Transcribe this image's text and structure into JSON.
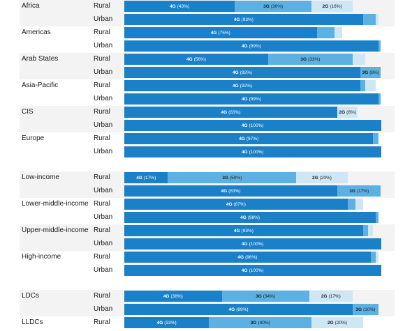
{
  "colors": {
    "4G": "#1a80c8",
    "3G": "#5cb1e2",
    "2G": "#cfe6f5",
    "band": "#f3f3f3",
    "text": "#1a1a1a"
  },
  "chart_data": {
    "type": "bar",
    "orientation": "horizontal",
    "stacked": true,
    "xlim": [
      0,
      100
    ],
    "unit": "%",
    "groups": [
      {
        "label": "Africa",
        "rows": [
          {
            "setting": "Rural",
            "segments": [
              {
                "tech": "4G",
                "value": 43,
                "label": "(43%)"
              },
              {
                "tech": "3G",
                "value": 30,
                "label": "(30%)"
              },
              {
                "tech": "2G",
                "value": 16,
                "label": "(16%)"
              }
            ]
          },
          {
            "setting": "Urban",
            "segments": [
              {
                "tech": "4G",
                "value": 93,
                "label": "(93%)"
              },
              {
                "tech": "3G",
                "value": 5,
                "label": ""
              },
              {
                "tech": "2G",
                "value": 1,
                "label": ""
              }
            ]
          }
        ]
      },
      {
        "label": "Americas",
        "rows": [
          {
            "setting": "Rural",
            "segments": [
              {
                "tech": "4G",
                "value": 75,
                "label": "(75%)"
              },
              {
                "tech": "3G",
                "value": 7,
                "label": ""
              },
              {
                "tech": "2G",
                "value": 3,
                "label": ""
              }
            ]
          },
          {
            "setting": "Urban",
            "segments": [
              {
                "tech": "4G",
                "value": 99,
                "label": "(99%)"
              },
              {
                "tech": "3G",
                "value": 1,
                "label": ""
              }
            ]
          }
        ]
      },
      {
        "label": "Arab States",
        "rows": [
          {
            "setting": "Rural",
            "segments": [
              {
                "tech": "4G",
                "value": 56,
                "label": "(56%)"
              },
              {
                "tech": "3G",
                "value": 33,
                "label": "(33%)"
              },
              {
                "tech": "2G",
                "value": 5,
                "label": ""
              }
            ]
          },
          {
            "setting": "Urban",
            "segments": [
              {
                "tech": "4G",
                "value": 92,
                "label": "(92%)"
              },
              {
                "tech": "3G",
                "value": 8,
                "label": "(8%)"
              }
            ]
          }
        ]
      },
      {
        "label": "Asia-Pacific",
        "rows": [
          {
            "setting": "Rural",
            "segments": [
              {
                "tech": "4G",
                "value": 92,
                "label": "(92%)"
              },
              {
                "tech": "3G",
                "value": 2,
                "label": ""
              },
              {
                "tech": "2G",
                "value": 4,
                "label": ""
              }
            ]
          },
          {
            "setting": "Urban",
            "segments": [
              {
                "tech": "4G",
                "value": 99,
                "label": "(99%)"
              },
              {
                "tech": "3G",
                "value": 1,
                "label": ""
              }
            ]
          }
        ]
      },
      {
        "label": "CIS",
        "rows": [
          {
            "setting": "Rural",
            "segments": [
              {
                "tech": "4G",
                "value": 83,
                "label": "(83%)"
              },
              {
                "tech": "3G",
                "value": 0,
                "label": ""
              },
              {
                "tech": "2G",
                "value": 8,
                "label": "(8%)"
              }
            ]
          },
          {
            "setting": "Urban",
            "segments": [
              {
                "tech": "4G",
                "value": 100,
                "label": "(100%)"
              }
            ]
          }
        ]
      },
      {
        "label": "Europe",
        "rows": [
          {
            "setting": "Rural",
            "segments": [
              {
                "tech": "4G",
                "value": 97,
                "label": "(97%)"
              },
              {
                "tech": "3G",
                "value": 2,
                "label": ""
              }
            ]
          },
          {
            "setting": "Urban",
            "segments": [
              {
                "tech": "4G",
                "value": 100,
                "label": "(100%)"
              }
            ]
          }
        ]
      },
      {
        "label": "Low-income",
        "rows": [
          {
            "setting": "Rural",
            "segments": [
              {
                "tech": "4G",
                "value": 17,
                "label": "(17%)"
              },
              {
                "tech": "3G",
                "value": 50,
                "label": "(50%)"
              },
              {
                "tech": "2G",
                "value": 20,
                "label": "(20%)"
              }
            ]
          },
          {
            "setting": "Urban",
            "segments": [
              {
                "tech": "4G",
                "value": 83,
                "label": "(83%)"
              },
              {
                "tech": "3G",
                "value": 17,
                "label": "(17%)"
              }
            ]
          }
        ]
      },
      {
        "label": "Lower-middle-income",
        "rows": [
          {
            "setting": "Rural",
            "segments": [
              {
                "tech": "4G",
                "value": 87,
                "label": "(87%)"
              },
              {
                "tech": "3G",
                "value": 3,
                "label": ""
              },
              {
                "tech": "2G",
                "value": 3,
                "label": ""
              }
            ]
          },
          {
            "setting": "Urban",
            "segments": [
              {
                "tech": "4G",
                "value": 98,
                "label": "(98%)"
              },
              {
                "tech": "3G",
                "value": 1,
                "label": ""
              }
            ]
          }
        ]
      },
      {
        "label": "Upper-middle-income",
        "rows": [
          {
            "setting": "Rural",
            "segments": [
              {
                "tech": "4G",
                "value": 93,
                "label": "(93%)"
              },
              {
                "tech": "3G",
                "value": 2,
                "label": ""
              },
              {
                "tech": "2G",
                "value": 2,
                "label": ""
              }
            ]
          },
          {
            "setting": "Urban",
            "segments": [
              {
                "tech": "4G",
                "value": 100,
                "label": "(100%)"
              }
            ]
          }
        ]
      },
      {
        "label": "High-income",
        "rows": [
          {
            "setting": "Rural",
            "segments": [
              {
                "tech": "4G",
                "value": 96,
                "label": "(96%)"
              },
              {
                "tech": "3G",
                "value": 2,
                "label": ""
              },
              {
                "tech": "2G",
                "value": 1,
                "label": ""
              }
            ]
          },
          {
            "setting": "Urban",
            "segments": [
              {
                "tech": "4G",
                "value": 100,
                "label": "(100%)"
              }
            ]
          }
        ]
      },
      {
        "label": "LDCs",
        "rows": [
          {
            "setting": "Rural",
            "segments": [
              {
                "tech": "4G",
                "value": 38,
                "label": "(38%)"
              },
              {
                "tech": "3G",
                "value": 34,
                "label": "(34%)"
              },
              {
                "tech": "2G",
                "value": 17,
                "label": "(17%)"
              }
            ]
          },
          {
            "setting": "Urban",
            "segments": [
              {
                "tech": "4G",
                "value": 89,
                "label": "(89%)"
              },
              {
                "tech": "3G",
                "value": 10,
                "label": "(10%)"
              }
            ]
          }
        ]
      },
      {
        "label": "LLDCs",
        "rows": [
          {
            "setting": "Rural",
            "segments": [
              {
                "tech": "4G",
                "value": 33,
                "label": "(33%)"
              },
              {
                "tech": "3G",
                "value": 40,
                "label": "(40%)"
              },
              {
                "tech": "2G",
                "value": 20,
                "label": "(20%)"
              }
            ]
          }
        ]
      }
    ]
  }
}
